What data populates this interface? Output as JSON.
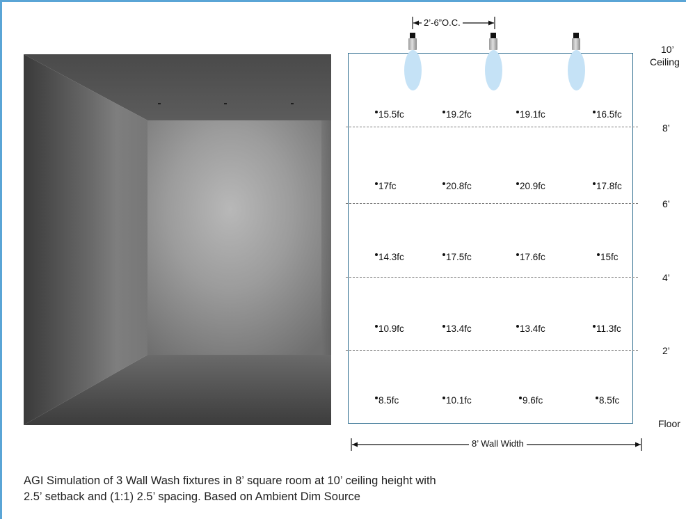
{
  "dimension": {
    "spacing": "2’-6”O.C.",
    "wall_width": "8’ Wall Width"
  },
  "heights": {
    "ceiling_top": "10’",
    "ceiling_bottom": "Ceiling",
    "h8": "8’",
    "h6": "6’",
    "h4": "4’",
    "h2": "2’",
    "floor": "Floor"
  },
  "grid": [
    [
      "15.5fc",
      "19.2fc",
      "19.1fc",
      "16.5fc"
    ],
    [
      "17fc",
      "20.8fc",
      "20.9fc",
      "17.8fc"
    ],
    [
      "14.3fc",
      "17.5fc",
      "17.6fc",
      "15fc"
    ],
    [
      "10.9fc",
      "13.4fc",
      "13.4fc",
      "11.3fc"
    ],
    [
      "8.5fc",
      "10.1fc",
      "9.6fc",
      "8.5fc"
    ]
  ],
  "caption": {
    "line1": "AGI Simulation of 3 Wall Wash fixtures in 8’ square room at 10’ ceiling height with",
    "line2": "2.5’ setback and (1:1) 2.5’ spacing.  Based on Ambient Dim Source"
  },
  "colors": {
    "frame_border": "#5aa5d6",
    "wall_outline": "#2f6d8f",
    "beam": "#c5e2f6"
  }
}
